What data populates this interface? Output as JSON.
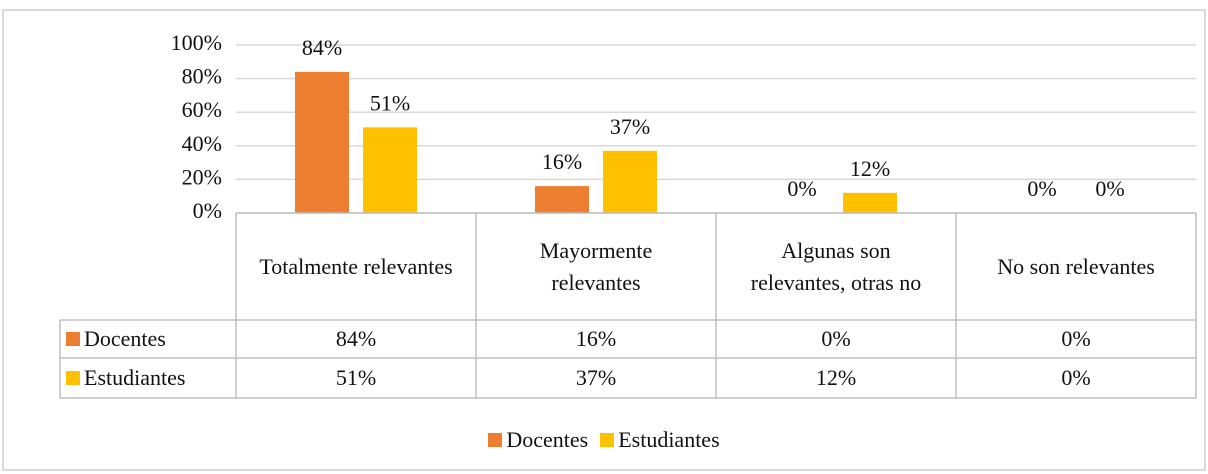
{
  "chart_data": {
    "type": "bar",
    "categories": [
      "Totalmente relevantes",
      "Mayormente relevantes",
      "Algunas son relevantes, otras no",
      "No son relevantes"
    ],
    "series": [
      {
        "name": "Docentes",
        "color": "#ed7d31",
        "values": [
          84,
          16,
          0,
          0
        ],
        "value_labels": [
          "84%",
          "16%",
          "0%",
          "0%"
        ]
      },
      {
        "name": "Estudiantes",
        "color": "#ffc000",
        "values": [
          51,
          37,
          12,
          0
        ],
        "value_labels": [
          "51%",
          "37%",
          "12%",
          "0%"
        ]
      }
    ],
    "ylim": [
      0,
      100
    ],
    "yticks": [
      {
        "value": 0,
        "label": "0%"
      },
      {
        "value": 20,
        "label": "20%"
      },
      {
        "value": 40,
        "label": "40%"
      },
      {
        "value": 60,
        "label": "60%"
      },
      {
        "value": 80,
        "label": "80%"
      },
      {
        "value": 100,
        "label": "100%"
      }
    ],
    "grid": true,
    "data_table": true,
    "legend": "bottom"
  }
}
